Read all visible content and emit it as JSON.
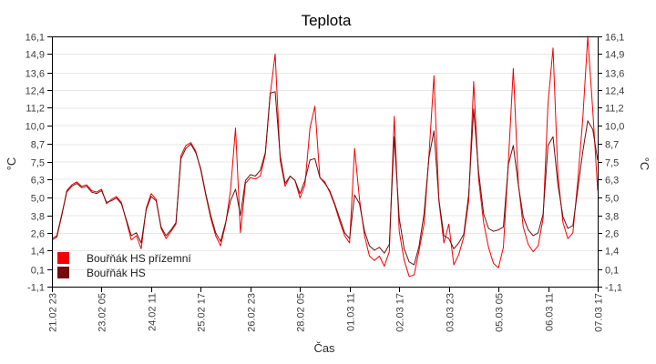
{
  "title": "Teplota",
  "xlabel": "Čas",
  "ylabel_left": "°C",
  "ylabel_right": "°C",
  "colors": {
    "series_red": "#f40000",
    "series_dark_red": "#750c0c",
    "gridline": "#e7e7e7",
    "axis": "#000000",
    "background": "#ffffff"
  },
  "chart_data": {
    "type": "line",
    "title": "Teplota",
    "xlabel": "Čas",
    "ylabel": "°C",
    "grid": "horizontal",
    "legend_position": "bottom-left-inside",
    "ylim": [
      -1.1,
      16.1
    ],
    "xlim_hours": [
      0,
      330
    ],
    "hours_start": 0,
    "hours_step": 3,
    "x_axis_note": "time axis from 21.02 23:00 to 07.03 17:00, ticks every 30 h",
    "x_tick_hours": [
      0,
      30,
      60,
      90,
      120,
      150,
      180,
      210,
      240,
      270,
      300,
      330
    ],
    "x_tick_labels": [
      "21.02 23",
      "23.02 05",
      "24.02 11",
      "25.02 17",
      "26.02 23",
      "28.02 05",
      "01.03 11",
      "02.03 17",
      "03.03 23",
      "05.03 05",
      "06.03 11",
      "07.03 17"
    ],
    "y_tick_values": [
      16.1,
      14.9,
      13.6,
      12.4,
      11.2,
      10.0,
      8.7,
      7.5,
      6.3,
      5.0,
      3.8,
      2.6,
      1.4,
      0.1,
      -1.1
    ],
    "y_tick_labels": [
      "16,1",
      "14,9",
      "13,6",
      "12,4",
      "11,2",
      "10,0",
      "8,7",
      "7,5",
      "6,3",
      "5,0",
      "3,8",
      "2,6",
      "1,4",
      "0,1",
      "-1,1"
    ],
    "series": [
      {
        "id": "prizemni",
        "name": "Bouřňák HS přízemní",
        "color": "#f40000",
        "values": [
          2.1,
          2.3,
          3.8,
          5.5,
          5.9,
          6.1,
          5.8,
          5.9,
          5.5,
          5.4,
          5.6,
          4.6,
          4.9,
          5.1,
          4.7,
          3.4,
          2.1,
          2.4,
          1.5,
          4.3,
          5.3,
          4.9,
          2.9,
          2.2,
          2.7,
          3.2,
          7.9,
          8.6,
          8.8,
          8.2,
          6.9,
          5.2,
          3.6,
          2.4,
          1.7,
          3.2,
          5.5,
          9.8,
          2.6,
          6.0,
          6.4,
          6.3,
          6.5,
          8.0,
          12.1,
          14.9,
          7.6,
          5.8,
          6.5,
          6.2,
          5.0,
          5.9,
          9.8,
          11.3,
          6.4,
          6.1,
          5.4,
          4.5,
          3.4,
          2.4,
          1.9,
          8.4,
          4.9,
          2.4,
          1.0,
          0.7,
          1.0,
          0.3,
          1.3,
          10.6,
          2.7,
          0.7,
          -0.4,
          -0.3,
          1.4,
          3.2,
          8.0,
          13.4,
          4.8,
          1.9,
          3.2,
          0.4,
          1.1,
          2.3,
          4.8,
          13.0,
          6.3,
          3.3,
          1.6,
          0.5,
          0.2,
          1.6,
          7.5,
          13.9,
          6.0,
          3.0,
          1.8,
          1.3,
          1.7,
          3.6,
          11.5,
          15.3,
          6.5,
          3.3,
          2.2,
          2.6,
          6.2,
          10.5,
          16.1,
          11.0,
          5.5
        ]
      },
      {
        "id": "hs",
        "name": "Bouřňák HS",
        "color": "#750c0c",
        "values": [
          2.2,
          2.4,
          3.9,
          5.4,
          5.8,
          6.0,
          5.7,
          5.8,
          5.4,
          5.3,
          5.5,
          4.7,
          4.8,
          5.0,
          4.6,
          3.5,
          2.4,
          2.6,
          1.9,
          4.2,
          5.1,
          4.8,
          3.0,
          2.4,
          2.8,
          3.3,
          7.7,
          8.4,
          8.7,
          8.1,
          7.0,
          5.3,
          3.8,
          2.6,
          2.0,
          3.3,
          4.8,
          5.6,
          3.8,
          6.2,
          6.6,
          6.5,
          6.9,
          8.1,
          12.2,
          12.3,
          7.9,
          6.0,
          6.5,
          6.2,
          5.3,
          6.2,
          7.6,
          7.7,
          6.4,
          6.0,
          5.5,
          4.6,
          3.6,
          2.6,
          2.2,
          5.2,
          4.6,
          2.7,
          1.7,
          1.4,
          1.6,
          1.2,
          1.8,
          9.2,
          3.6,
          1.5,
          0.6,
          0.4,
          1.7,
          3.9,
          7.8,
          9.6,
          4.9,
          2.4,
          2.2,
          1.5,
          1.9,
          2.5,
          5.2,
          11.1,
          6.8,
          3.9,
          2.9,
          2.7,
          2.8,
          3.0,
          7.3,
          8.6,
          5.9,
          3.7,
          2.8,
          2.4,
          2.6,
          3.9,
          8.6,
          9.2,
          5.9,
          3.7,
          2.9,
          3.1,
          5.6,
          8.2,
          10.3,
          9.7,
          7.6
        ]
      }
    ]
  }
}
